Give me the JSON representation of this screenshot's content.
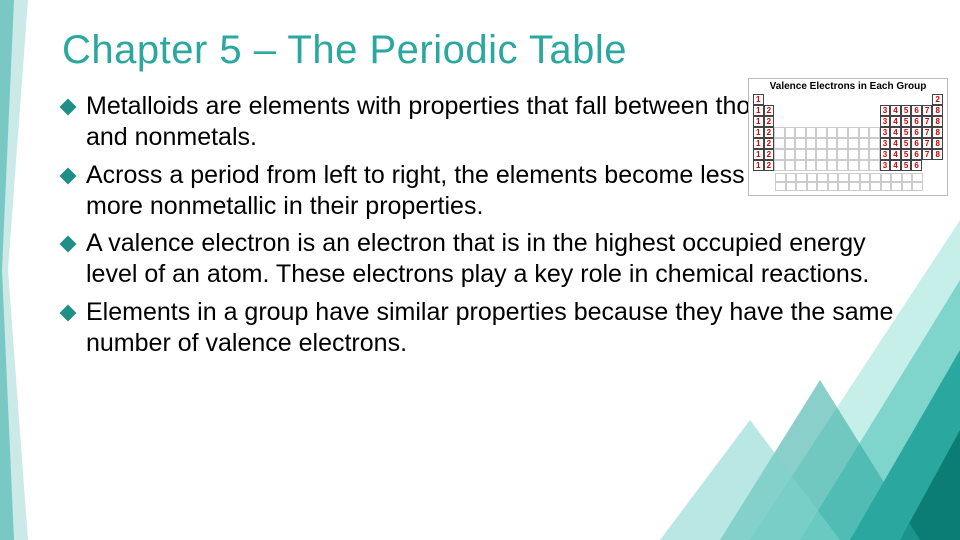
{
  "title": {
    "text": "Chapter 5 – The Periodic Table",
    "color": "#2aa89f",
    "fontsize": 40
  },
  "bullets": {
    "diamond_color": "#1f8f87",
    "text_color": "#000000",
    "fontsize": 25,
    "items": [
      {
        "lead": "Metalloids",
        "rest": " are elements with properties that fall between those of metals and nonmetals."
      },
      {
        "lead": "Across",
        "rest": " a period from left to right, the elements become less metallic and more nonmetallic in their properties."
      },
      {
        "lead": "A",
        "rest": " valence electron is an electron that is in the highest occupied energy level of an atom. These electrons play a key role in chemical reactions."
      },
      {
        "lead": "Elements",
        "rest": " in a group have similar properties because they have the same number of valence electrons."
      }
    ]
  },
  "chart": {
    "title": "Valence Electrons in Each Group",
    "num_color": "#d00000",
    "border_color": "#444444",
    "f_border_color": "#cccccc",
    "rows": [
      [
        "1",
        "",
        "",
        "",
        "",
        "",
        "",
        "",
        "",
        "",
        "",
        "",
        "",
        "",
        "",
        "",
        "",
        "2"
      ],
      [
        "1",
        "2",
        "",
        "",
        "",
        "",
        "",
        "",
        "",
        "",
        "",
        "",
        "3",
        "4",
        "5",
        "6",
        "7",
        "8"
      ],
      [
        "1",
        "2",
        "",
        "",
        "",
        "",
        "",
        "",
        "",
        "",
        "",
        "",
        "3",
        "4",
        "5",
        "6",
        "7",
        "8"
      ],
      [
        "1",
        "2",
        "g",
        "g",
        "g",
        "g",
        "g",
        "g",
        "g",
        "g",
        "g",
        "g",
        "3",
        "4",
        "5",
        "6",
        "7",
        "8"
      ],
      [
        "1",
        "2",
        "g",
        "g",
        "g",
        "g",
        "g",
        "g",
        "g",
        "g",
        "g",
        "g",
        "3",
        "4",
        "5",
        "6",
        "7",
        "8"
      ],
      [
        "1",
        "2",
        "g",
        "g",
        "g",
        "g",
        "g",
        "g",
        "g",
        "g",
        "g",
        "g",
        "3",
        "4",
        "5",
        "6",
        "7",
        "8"
      ],
      [
        "1",
        "2",
        "g",
        "g",
        "g",
        "g",
        "g",
        "g",
        "g",
        "g",
        "g",
        "g",
        "3",
        "4",
        "5",
        "6",
        "",
        ""
      ]
    ],
    "frows": 2,
    "fcols": 14
  },
  "deco": {
    "teal_dark": "#0b7d74",
    "teal_mid": "#2aa89f",
    "teal_light": "#7fd4cc",
    "teal_pale": "#c7efe9"
  }
}
